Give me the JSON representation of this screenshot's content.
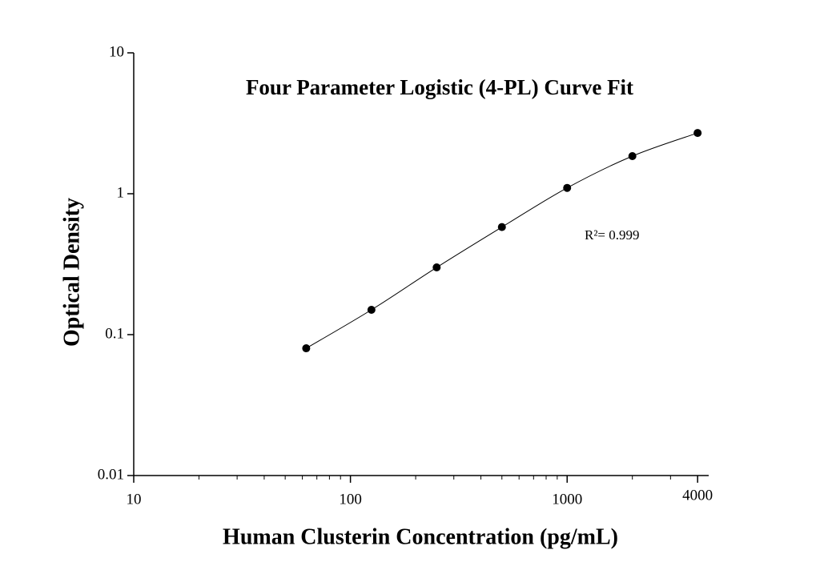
{
  "chart_data": {
    "type": "scatter",
    "title": "Four Parameter Logistic (4-PL) Curve Fit",
    "x_label": "Human Clusterin Concentration (pg/mL)",
    "y_label": "Optical Density",
    "annotation": "R²= 0.999",
    "x": [
      62.5,
      125,
      250,
      500,
      1000,
      2000,
      4000
    ],
    "series": [
      {
        "color": "#000000",
        "values": [
          0.08,
          0.15,
          0.3,
          0.58,
          1.1,
          1.85,
          2.7
        ]
      }
    ],
    "x_log": true,
    "y_log": true,
    "fit_curve": true,
    "x_minor_ticks": true,
    "xlim": [
      10,
      4500
    ],
    "xticks": [
      10,
      100,
      1000,
      4000
    ],
    "ylim": [
      0.01,
      10
    ],
    "yticks": [
      0.01,
      0.1,
      1,
      10
    ]
  }
}
